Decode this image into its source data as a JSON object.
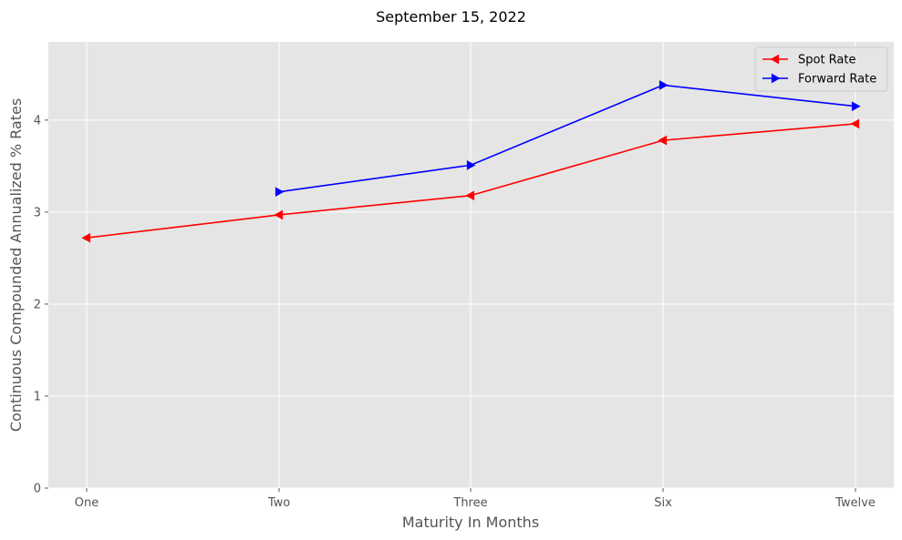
{
  "chart_data": {
    "type": "line",
    "title": "September 15, 2022",
    "xlabel": "Maturity In Months",
    "ylabel": "Continuous Compounded Annualized % Rates",
    "categories": [
      "One",
      "Two",
      "Three",
      "Six",
      "Twelve"
    ],
    "ylim": [
      0,
      4.85
    ],
    "yticks": [
      0,
      1,
      2,
      3,
      4
    ],
    "grid": true,
    "legend_position": "top-right",
    "series": [
      {
        "name": "Spot Rate",
        "color": "#ff0000",
        "marker": "triangle-left",
        "values": [
          2.72,
          2.97,
          3.18,
          3.78,
          3.96
        ]
      },
      {
        "name": "Forward Rate",
        "color": "#0000ff",
        "marker": "triangle-right",
        "values": [
          null,
          3.22,
          3.51,
          4.38,
          4.15
        ]
      }
    ]
  }
}
